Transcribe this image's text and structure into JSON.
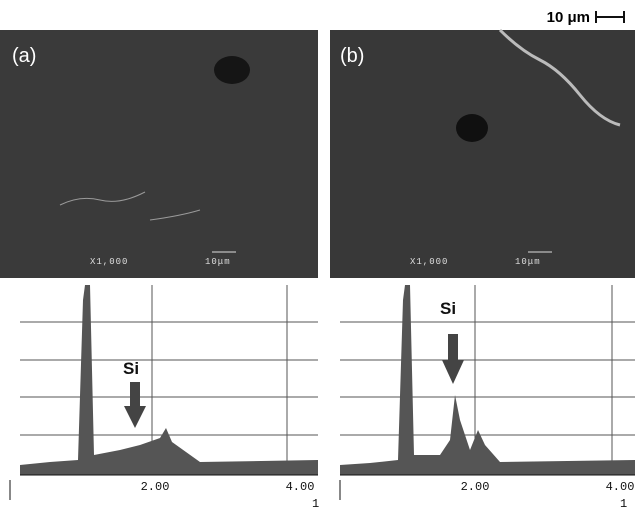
{
  "scale_bar": {
    "label": "10 μm"
  },
  "panels": [
    {
      "label": "(a)",
      "sem_magnification": "X1,000",
      "sem_scale": "10μm",
      "spectrum": {
        "peak_label": "Si",
        "ticks": [
          "2.00",
          "4.00"
        ],
        "axis_note": "1"
      }
    },
    {
      "label": "(b)",
      "sem_magnification": "X1,000",
      "sem_scale": "10μm",
      "spectrum": {
        "peak_label": "Si",
        "ticks": [
          "2.00",
          "4.00"
        ],
        "axis_note": "1"
      }
    }
  ]
}
